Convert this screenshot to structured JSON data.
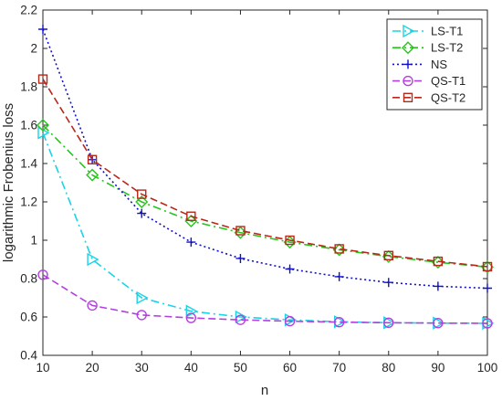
{
  "chart_data": {
    "type": "line",
    "title": "",
    "xlabel": "n",
    "ylabel": "logarithmic Frobenius loss",
    "x": [
      10,
      20,
      30,
      40,
      50,
      60,
      70,
      80,
      90,
      100
    ],
    "xlim": [
      10,
      100
    ],
    "ylim": [
      0.4,
      2.2
    ],
    "xticks": [
      10,
      20,
      30,
      40,
      50,
      60,
      70,
      80,
      90,
      100
    ],
    "yticks": [
      0.4,
      0.6,
      0.8,
      1,
      1.2,
      1.4,
      1.6,
      1.8,
      2,
      2.2
    ],
    "grid": false,
    "legend_position": "top-right",
    "series": [
      {
        "name": "LS-T1",
        "color": "#19d3e6",
        "marker": "triangle-right",
        "dash": "dash-dot",
        "values": [
          1.56,
          0.9,
          0.7,
          0.63,
          0.6,
          0.585,
          0.575,
          0.57,
          0.568,
          0.567
        ]
      },
      {
        "name": "LS-T2",
        "color": "#27c41d",
        "marker": "diamond",
        "dash": "dash-dot",
        "values": [
          1.6,
          1.34,
          1.2,
          1.1,
          1.04,
          0.99,
          0.95,
          0.915,
          0.885,
          0.86
        ]
      },
      {
        "name": "NS",
        "color": "#1010cc",
        "marker": "plus",
        "dash": "dotted",
        "values": [
          2.1,
          1.42,
          1.14,
          0.99,
          0.905,
          0.85,
          0.81,
          0.78,
          0.76,
          0.75
        ]
      },
      {
        "name": "QS-T1",
        "color": "#b43fe0",
        "marker": "circle",
        "dash": "dashed",
        "values": [
          0.82,
          0.66,
          0.61,
          0.595,
          0.585,
          0.578,
          0.573,
          0.57,
          0.568,
          0.567
        ]
      },
      {
        "name": "QS-T2",
        "color": "#b8281a",
        "marker": "square",
        "dash": "dashed",
        "values": [
          1.84,
          1.42,
          1.24,
          1.125,
          1.05,
          1.0,
          0.955,
          0.92,
          0.89,
          0.862
        ]
      }
    ]
  }
}
